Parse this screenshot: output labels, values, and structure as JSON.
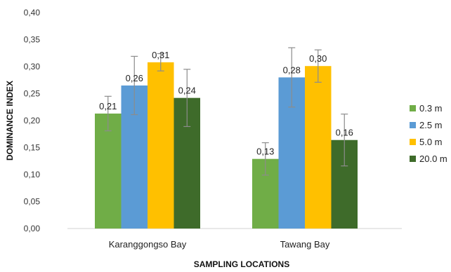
{
  "chart_data": {
    "type": "bar",
    "title": "",
    "xlabel": "SAMPLING LOCATIONS",
    "ylabel": "DOMINANCE INDEX",
    "categories": [
      "Karanggongso Bay",
      "Tawang Bay"
    ],
    "ylim": [
      0,
      0.4
    ],
    "yticks": [
      "0,00",
      "0,05",
      "0,10",
      "0,15",
      "0,20",
      "0,25",
      "0,30",
      "0,35",
      "0,40"
    ],
    "grid": false,
    "legend_position": "right",
    "series": [
      {
        "name": "0.3 m",
        "color": "#70ad47",
        "values": [
          0.213,
          0.129
        ],
        "labels": [
          "0,21",
          "0,13"
        ],
        "error": [
          0.032,
          0.03
        ]
      },
      {
        "name": "2.5 m",
        "color": "#5b9bd5",
        "values": [
          0.265,
          0.28
        ],
        "labels": [
          "0,26",
          "0,28"
        ],
        "error": [
          0.054,
          0.055
        ]
      },
      {
        "name": "5.0 m",
        "color": "#ffc000",
        "values": [
          0.308,
          0.301
        ],
        "labels": [
          "0,31",
          "0,30"
        ],
        "error": [
          0.016,
          0.03
        ]
      },
      {
        "name": "20.0 m",
        "color": "#3e6b2a",
        "values": [
          0.242,
          0.164
        ],
        "labels": [
          "0,24",
          "0,16"
        ],
        "error": [
          0.053,
          0.048
        ]
      }
    ]
  }
}
